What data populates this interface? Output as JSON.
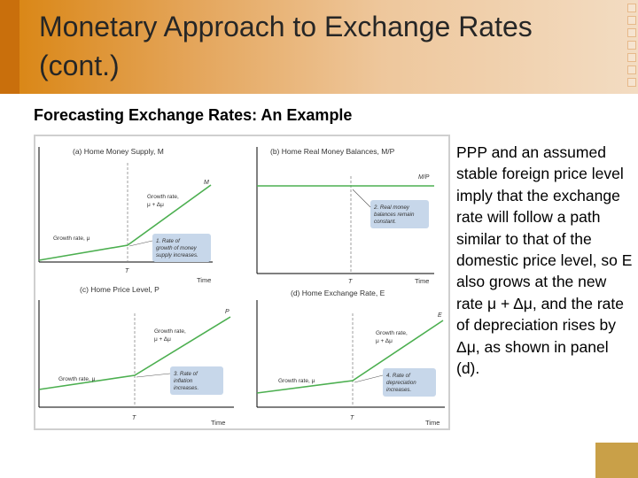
{
  "slide": {
    "title_line1": "Monetary Approach to Exchange Rates",
    "title_line2": "(cont.)",
    "subtitle": "Forecasting Exchange Rates: An Example",
    "body_text": "PPP and an assumed stable foreign price level imply that the exchange rate will follow a path similar to that of the domestic price level, so E also grows at the new rate μ + Δμ, and the rate of depreciation rises by Δμ, as shown in panel (d)."
  },
  "figure": {
    "panel_a": {
      "title": "(a) Home Money Supply, M",
      "curve_label": "M",
      "growth_before": "Growth rate, μ",
      "growth_after_1": "Growth rate,",
      "growth_after_2": "μ + Δμ",
      "note_1": "1. Rate of",
      "note_2": "growth of money",
      "note_3": "supply increases.",
      "t_label": "T",
      "time_label": "Time"
    },
    "panel_b": {
      "title": "(b) Home Real Money Balances, M/P",
      "curve_label": "M/P",
      "note_1": "2. Real money",
      "note_2": "balances remain",
      "note_3": "constant.",
      "t_label": "T",
      "time_label": "Time"
    },
    "panel_c": {
      "title": "(c) Home Price Level, P",
      "curve_label": "P",
      "growth_before": "Growth rate, μ",
      "growth_after_1": "Growth rate,",
      "growth_after_2": "μ + Δμ",
      "note_1": "3. Rate of",
      "note_2": "inflation",
      "note_3": "increases.",
      "t_label": "T",
      "time_label": "Time"
    },
    "panel_d": {
      "title": "(d) Home Exchange Rate, E",
      "curve_label": "E",
      "growth_before": "Growth rate, μ",
      "growth_after_1": "Growth rate,",
      "growth_after_2": "μ + Δμ",
      "note_1": "4. Rate of",
      "note_2": "depreciation",
      "note_3": "increases.",
      "t_label": "T",
      "time_label": "Time"
    }
  },
  "colors": {
    "title_gradient_start": "#d98410",
    "title_gradient_end": "#f3dcc2",
    "curve_green": "#4caf50",
    "note_box": "#c7d7ea"
  }
}
